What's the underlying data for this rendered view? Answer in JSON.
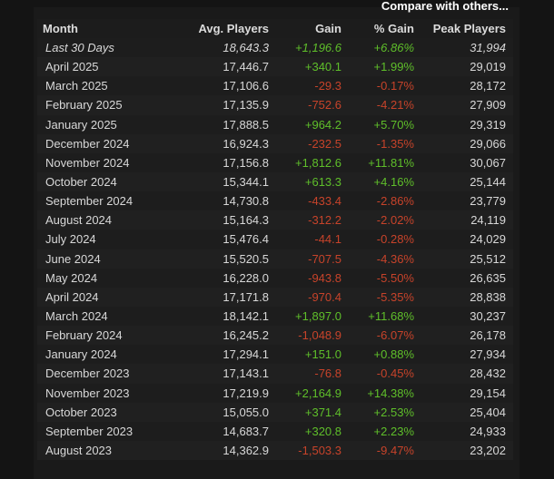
{
  "compare_link": "Compare with others...",
  "colors": {
    "positive": "#5fbf2a",
    "negative": "#c7432a"
  },
  "headers": [
    "Month",
    "Avg. Players",
    "Gain",
    "% Gain",
    "Peak Players"
  ],
  "rows": [
    {
      "month": "Last 30 Days",
      "avg": "18,643.3",
      "gain": "+1,196.6",
      "pct": "+6.86%",
      "peak": "31,994"
    },
    {
      "month": "April 2025",
      "avg": "17,446.7",
      "gain": "+340.1",
      "pct": "+1.99%",
      "peak": "29,019"
    },
    {
      "month": "March 2025",
      "avg": "17,106.6",
      "gain": "-29.3",
      "pct": "-0.17%",
      "peak": "28,172"
    },
    {
      "month": "February 2025",
      "avg": "17,135.9",
      "gain": "-752.6",
      "pct": "-4.21%",
      "peak": "27,909"
    },
    {
      "month": "January 2025",
      "avg": "17,888.5",
      "gain": "+964.2",
      "pct": "+5.70%",
      "peak": "29,319"
    },
    {
      "month": "December 2024",
      "avg": "16,924.3",
      "gain": "-232.5",
      "pct": "-1.35%",
      "peak": "29,066"
    },
    {
      "month": "November 2024",
      "avg": "17,156.8",
      "gain": "+1,812.6",
      "pct": "+11.81%",
      "peak": "30,067"
    },
    {
      "month": "October 2024",
      "avg": "15,344.1",
      "gain": "+613.3",
      "pct": "+4.16%",
      "peak": "25,144"
    },
    {
      "month": "September 2024",
      "avg": "14,730.8",
      "gain": "-433.4",
      "pct": "-2.86%",
      "peak": "23,779"
    },
    {
      "month": "August 2024",
      "avg": "15,164.3",
      "gain": "-312.2",
      "pct": "-2.02%",
      "peak": "24,119"
    },
    {
      "month": "July 2024",
      "avg": "15,476.4",
      "gain": "-44.1",
      "pct": "-0.28%",
      "peak": "24,029"
    },
    {
      "month": "June 2024",
      "avg": "15,520.5",
      "gain": "-707.5",
      "pct": "-4.36%",
      "peak": "25,512"
    },
    {
      "month": "May 2024",
      "avg": "16,228.0",
      "gain": "-943.8",
      "pct": "-5.50%",
      "peak": "26,635"
    },
    {
      "month": "April 2024",
      "avg": "17,171.8",
      "gain": "-970.4",
      "pct": "-5.35%",
      "peak": "28,838"
    },
    {
      "month": "March 2024",
      "avg": "18,142.1",
      "gain": "+1,897.0",
      "pct": "+11.68%",
      "peak": "30,237"
    },
    {
      "month": "February 2024",
      "avg": "16,245.2",
      "gain": "-1,048.9",
      "pct": "-6.07%",
      "peak": "26,178"
    },
    {
      "month": "January 2024",
      "avg": "17,294.1",
      "gain": "+151.0",
      "pct": "+0.88%",
      "peak": "27,934"
    },
    {
      "month": "December 2023",
      "avg": "17,143.1",
      "gain": "-76.8",
      "pct": "-0.45%",
      "peak": "28,432"
    },
    {
      "month": "November 2023",
      "avg": "17,219.9",
      "gain": "+2,164.9",
      "pct": "+14.38%",
      "peak": "29,154"
    },
    {
      "month": "October 2023",
      "avg": "15,055.0",
      "gain": "+371.4",
      "pct": "+2.53%",
      "peak": "25,404"
    },
    {
      "month": "September 2023",
      "avg": "14,683.7",
      "gain": "+320.8",
      "pct": "+2.23%",
      "peak": "24,933"
    },
    {
      "month": "August 2023",
      "avg": "14,362.9",
      "gain": "-1,503.3",
      "pct": "-9.47%",
      "peak": "23,202"
    }
  ]
}
